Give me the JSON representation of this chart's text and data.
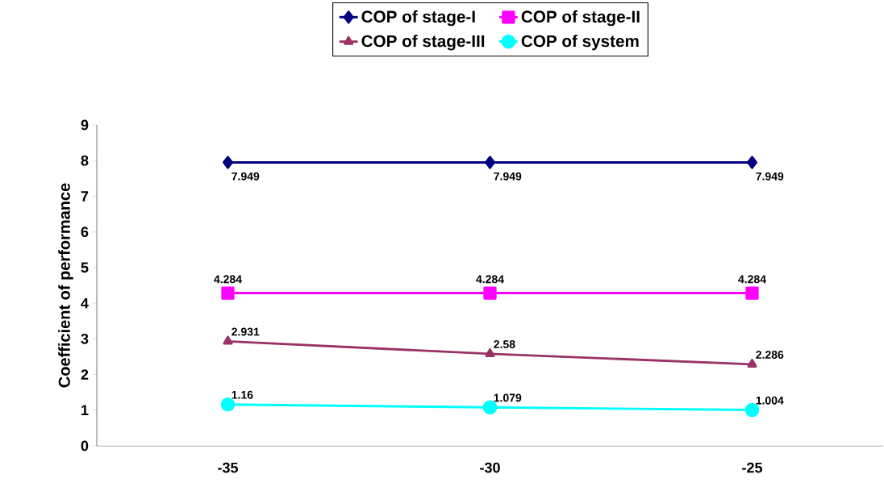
{
  "chart_data": {
    "type": "line",
    "ylabel": "Coefficient of performance",
    "categories": [
      "-35",
      "-30",
      "-25"
    ],
    "series": [
      {
        "name": "COP of stage-I",
        "color": "#000080",
        "marker": "diamond",
        "values": [
          7.949,
          7.949,
          7.949
        ]
      },
      {
        "name": "COP of stage-II",
        "color": "#ff00ff",
        "marker": "square",
        "values": [
          4.284,
          4.284,
          4.284
        ]
      },
      {
        "name": "COP of stage-III",
        "color": "#993366",
        "marker": "triangle",
        "values": [
          2.931,
          2.58,
          2.286
        ]
      },
      {
        "name": "COP of system",
        "color": "#00ffff",
        "marker": "circle",
        "values": [
          1.16,
          1.079,
          1.004
        ]
      }
    ],
    "ylim": [
      0,
      9
    ],
    "yticks": [
      0,
      1,
      2,
      3,
      4,
      5,
      6,
      7,
      8,
      9
    ],
    "data_labels": true,
    "legend": "top",
    "grid": false,
    "line_style": "solid"
  }
}
